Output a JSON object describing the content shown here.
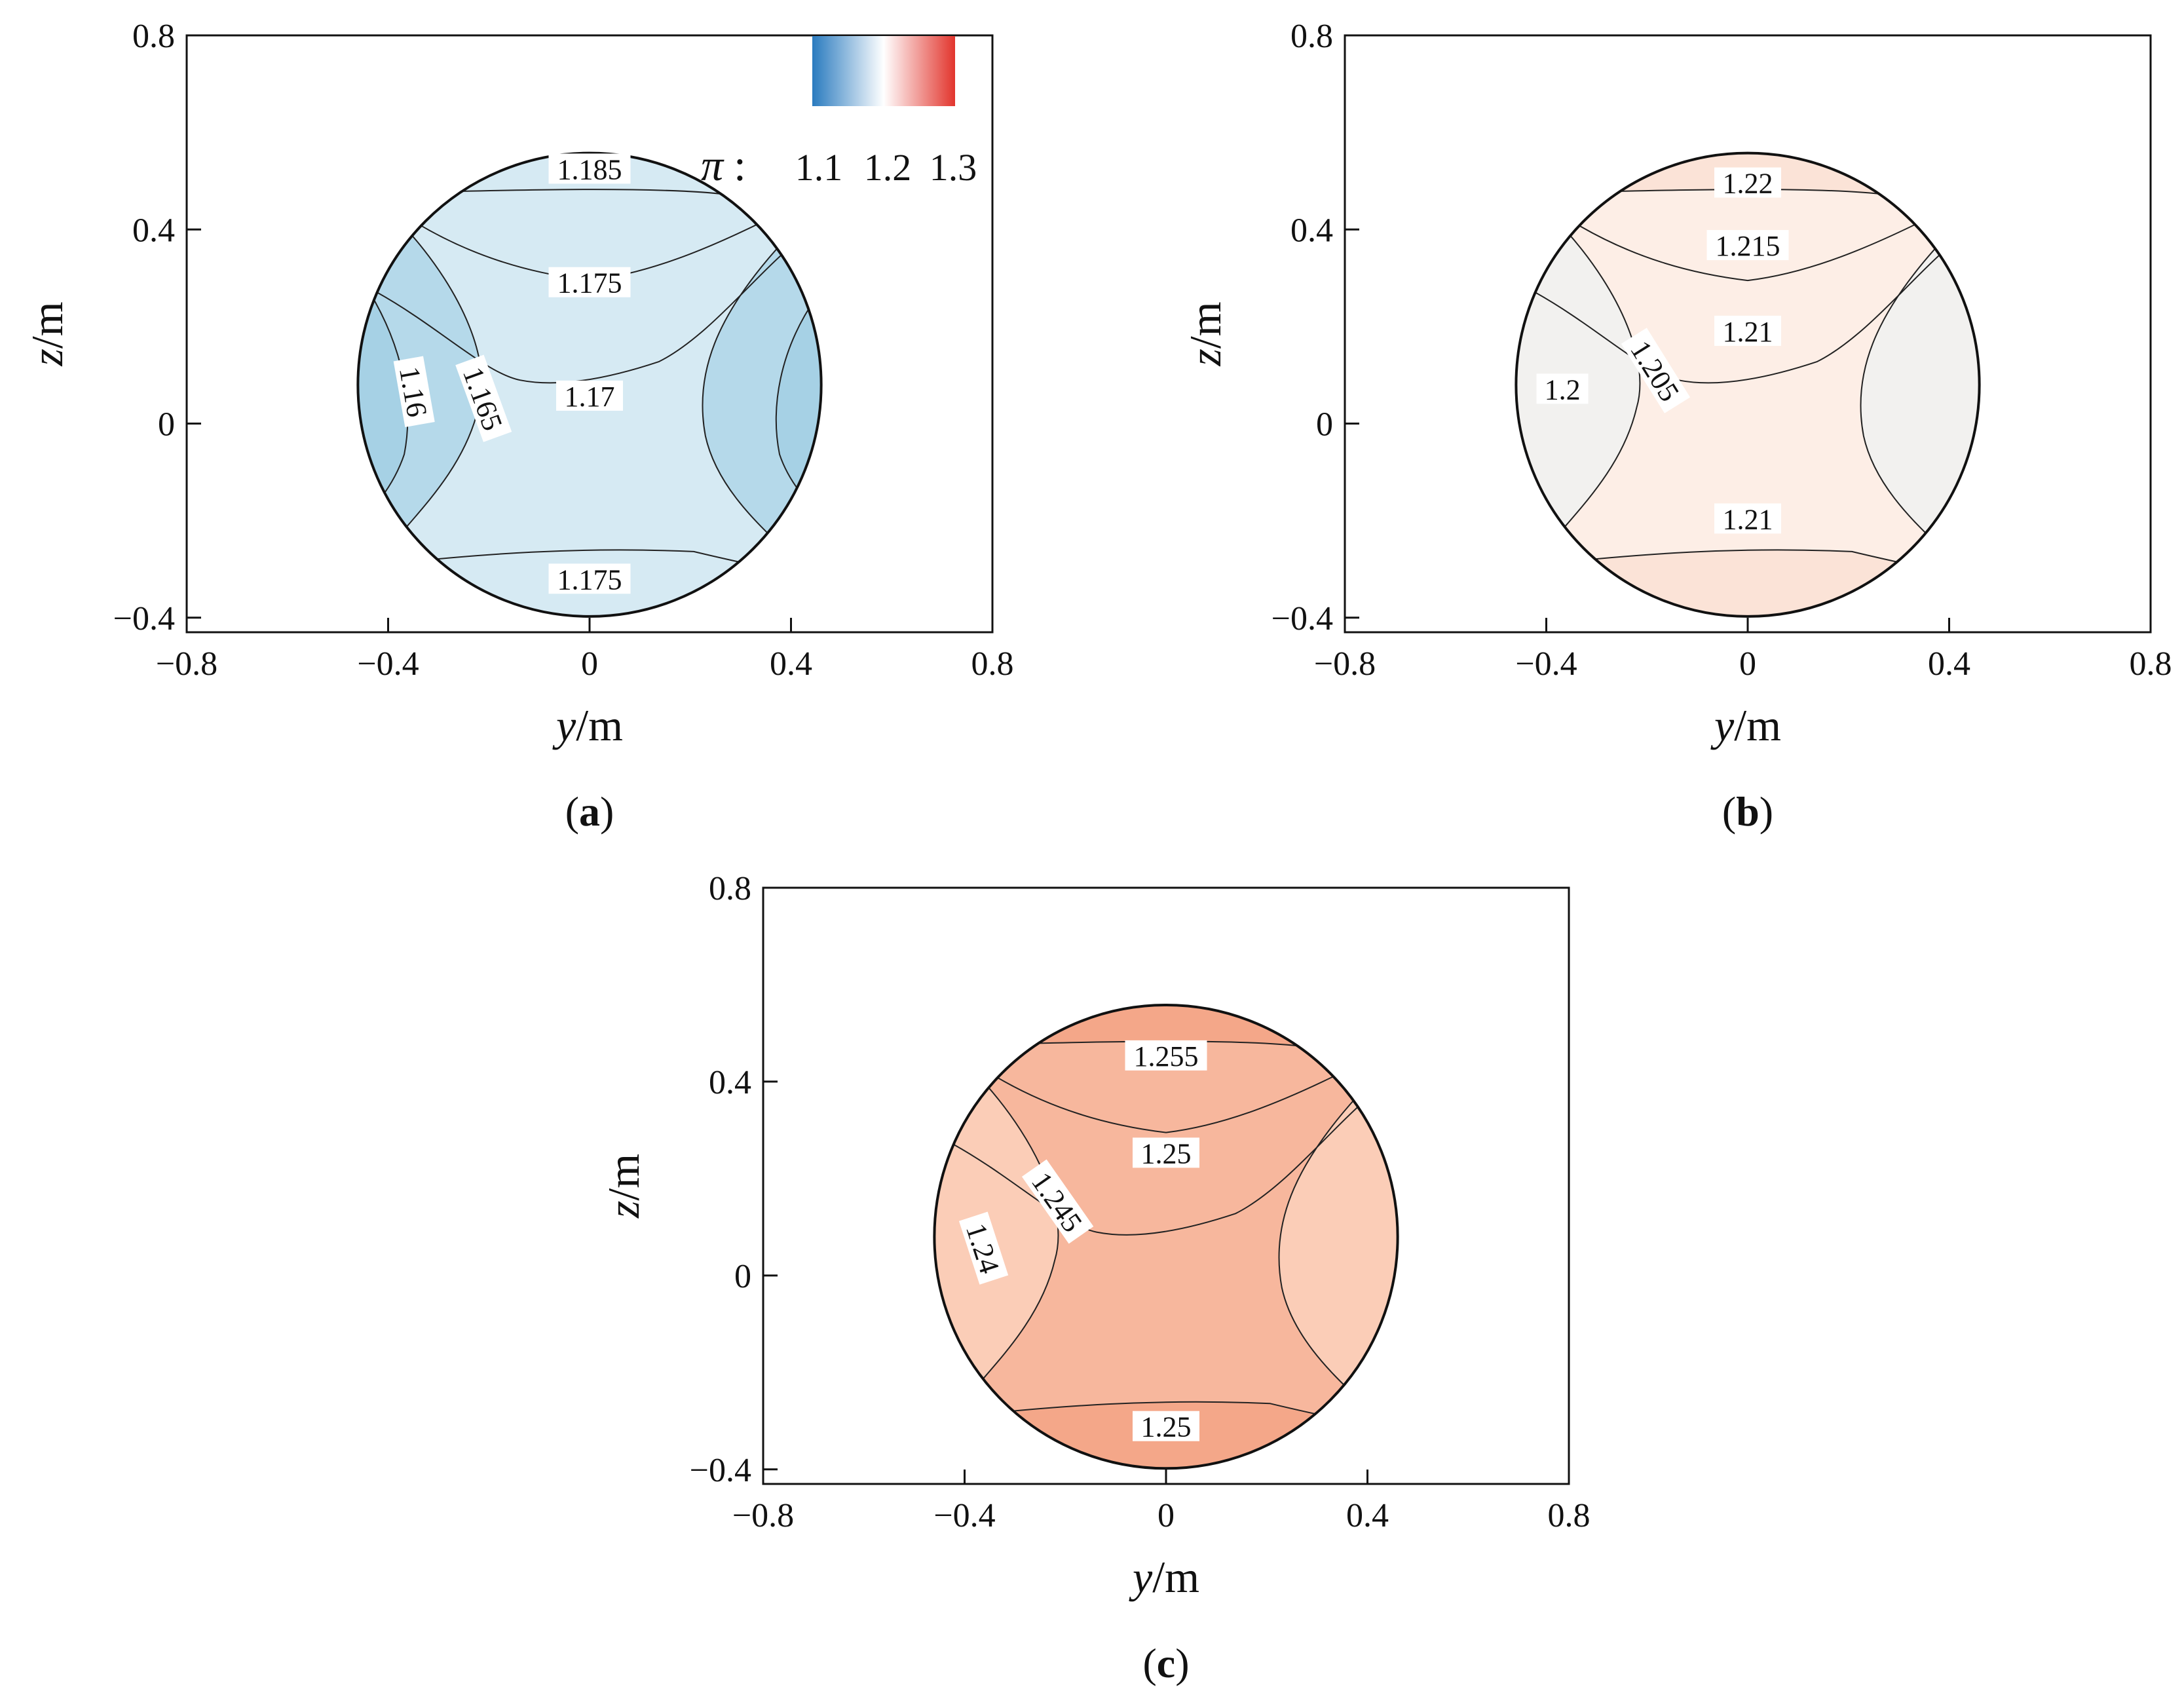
{
  "chart_data": [
    {
      "type": "contour",
      "panel": "(a)",
      "caption_letter": "a",
      "xlabel_var": "y",
      "xlabel_unit": "/m",
      "ylabel_var": "z",
      "ylabel_unit": "/m",
      "xlim": [
        -0.8,
        0.8
      ],
      "ylim": [
        -0.43,
        0.8
      ],
      "xticks": [
        -0.8,
        -0.4,
        0,
        0.4,
        0.8
      ],
      "xtick_labels": [
        "−0.8",
        "−0.4",
        "0",
        "0.4",
        "0.8"
      ],
      "yticks": [
        -0.4,
        0,
        0.4,
        0.8
      ],
      "ytick_labels": [
        "−0.4",
        "0",
        "0.4",
        "0.8"
      ],
      "domain": {
        "shape": "circle",
        "center": [
          0.0,
          0.08
        ],
        "radius": 0.46
      },
      "colors": {
        "core": "#d6eaf3",
        "side": "#b5d9ea",
        "side_deep": "#a6d1e5"
      },
      "contours": [
        {
          "label": "1.185"
        },
        {
          "label": "1.175"
        },
        {
          "label": "1.17"
        },
        {
          "label": "1.165"
        },
        {
          "label": "1.16"
        },
        {
          "label": "1.175"
        }
      ],
      "legend": {
        "symbol": "π",
        "separator": ":",
        "ticks": [
          "1.1",
          "1.2",
          "1.3"
        ],
        "range": [
          1.1,
          1.3
        ],
        "colormap": [
          "#2a7bbf",
          "#ffffff",
          "#e2352d"
        ]
      }
    },
    {
      "type": "contour",
      "panel": "(b)",
      "caption_letter": "b",
      "xlabel_var": "y",
      "xlabel_unit": "/m",
      "ylabel_var": "z",
      "ylabel_unit": "/m",
      "xlim": [
        -0.8,
        0.8
      ],
      "ylim": [
        -0.43,
        0.8
      ],
      "xticks": [
        -0.8,
        -0.4,
        0,
        0.4,
        0.8
      ],
      "xtick_labels": [
        "−0.8",
        "−0.4",
        "0",
        "0.4",
        "0.8"
      ],
      "yticks": [
        -0.4,
        0,
        0.4,
        0.8
      ],
      "ytick_labels": [
        "−0.4",
        "0",
        "0.4",
        "0.8"
      ],
      "domain": {
        "shape": "circle",
        "center": [
          0.0,
          0.08
        ],
        "radius": 0.46
      },
      "colors": {
        "core": "#fdeee6",
        "top": "#fbe3d7",
        "side": "#f2f1ef"
      },
      "contours": [
        {
          "label": "1.22"
        },
        {
          "label": "1.215"
        },
        {
          "label": "1.21"
        },
        {
          "label": "1.205"
        },
        {
          "label": "1.2"
        },
        {
          "label": "1.21"
        }
      ]
    },
    {
      "type": "contour",
      "panel": "(c)",
      "caption_letter": "c",
      "xlabel_var": "y",
      "xlabel_unit": "/m",
      "ylabel_var": "z",
      "ylabel_unit": "/m",
      "xlim": [
        -0.8,
        0.8
      ],
      "ylim": [
        -0.43,
        0.8
      ],
      "xticks": [
        -0.8,
        -0.4,
        0,
        0.4,
        0.8
      ],
      "xtick_labels": [
        "−0.8",
        "−0.4",
        "0",
        "0.4",
        "0.8"
      ],
      "yticks": [
        -0.4,
        0,
        0.4,
        0.8
      ],
      "ytick_labels": [
        "−0.4",
        "0",
        "0.4",
        "0.8"
      ],
      "domain": {
        "shape": "circle",
        "center": [
          0.0,
          0.08
        ],
        "radius": 0.46
      },
      "colors": {
        "core": "#f7b79d",
        "top": "#f4a789",
        "side": "#fbcdb7"
      },
      "contours": [
        {
          "label": "1.255"
        },
        {
          "label": "1.25"
        },
        {
          "label": "1.245"
        },
        {
          "label": "1.24"
        },
        {
          "label": "1.25"
        }
      ]
    }
  ]
}
